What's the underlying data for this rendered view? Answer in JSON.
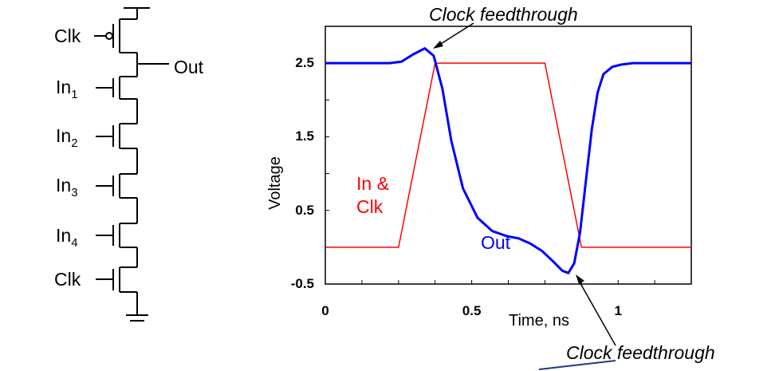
{
  "schematic": {
    "clk_top": "Clk",
    "out": "Out",
    "inputs": [
      {
        "base": "In",
        "sub": "1"
      },
      {
        "base": "In",
        "sub": "2"
      },
      {
        "base": "In",
        "sub": "3"
      },
      {
        "base": "In",
        "sub": "4"
      }
    ],
    "clk_bottom": "Clk"
  },
  "annotations": {
    "top": "Clock feedthrough",
    "bottom": "Clock feedthrough",
    "in_clk_line1": "In &",
    "in_clk_line2": "Clk",
    "out": "Out"
  },
  "chart_data": {
    "type": "line",
    "xlabel": "Time, ns",
    "ylabel": "Voltage",
    "xlim": [
      0,
      1.25
    ],
    "ylim": [
      -0.5,
      3.0
    ],
    "x_ticks": [
      "0",
      "0.5",
      "1"
    ],
    "x_tick_values": [
      0,
      0.5,
      1
    ],
    "y_ticks": [
      "2.5",
      "1.5",
      "0.5",
      "-0.5"
    ],
    "y_tick_values": [
      2.5,
      1.5,
      0.5,
      -0.5
    ],
    "grid": false,
    "colors": {
      "in_clk": "#ff0000",
      "out": "#0000ff"
    },
    "series": [
      {
        "name": "In & Clk",
        "x": [
          0,
          0.25,
          0.375,
          0.75,
          0.875,
          1.25
        ],
        "y": [
          0.0,
          0.0,
          2.5,
          2.5,
          0.0,
          0.0
        ]
      },
      {
        "name": "Out",
        "x": [
          0,
          0.22,
          0.26,
          0.3,
          0.34,
          0.37,
          0.4,
          0.43,
          0.47,
          0.52,
          0.57,
          0.62,
          0.66,
          0.7,
          0.74,
          0.78,
          0.81,
          0.83,
          0.85,
          0.87,
          0.89,
          0.91,
          0.93,
          0.95,
          0.98,
          1.01,
          1.05,
          1.1,
          1.25
        ],
        "y": [
          2.5,
          2.5,
          2.52,
          2.62,
          2.7,
          2.6,
          2.15,
          1.45,
          0.8,
          0.4,
          0.22,
          0.15,
          0.12,
          0.05,
          -0.05,
          -0.2,
          -0.32,
          -0.35,
          -0.22,
          0.2,
          0.9,
          1.6,
          2.1,
          2.35,
          2.45,
          2.48,
          2.5,
          2.5,
          2.5
        ]
      }
    ]
  }
}
